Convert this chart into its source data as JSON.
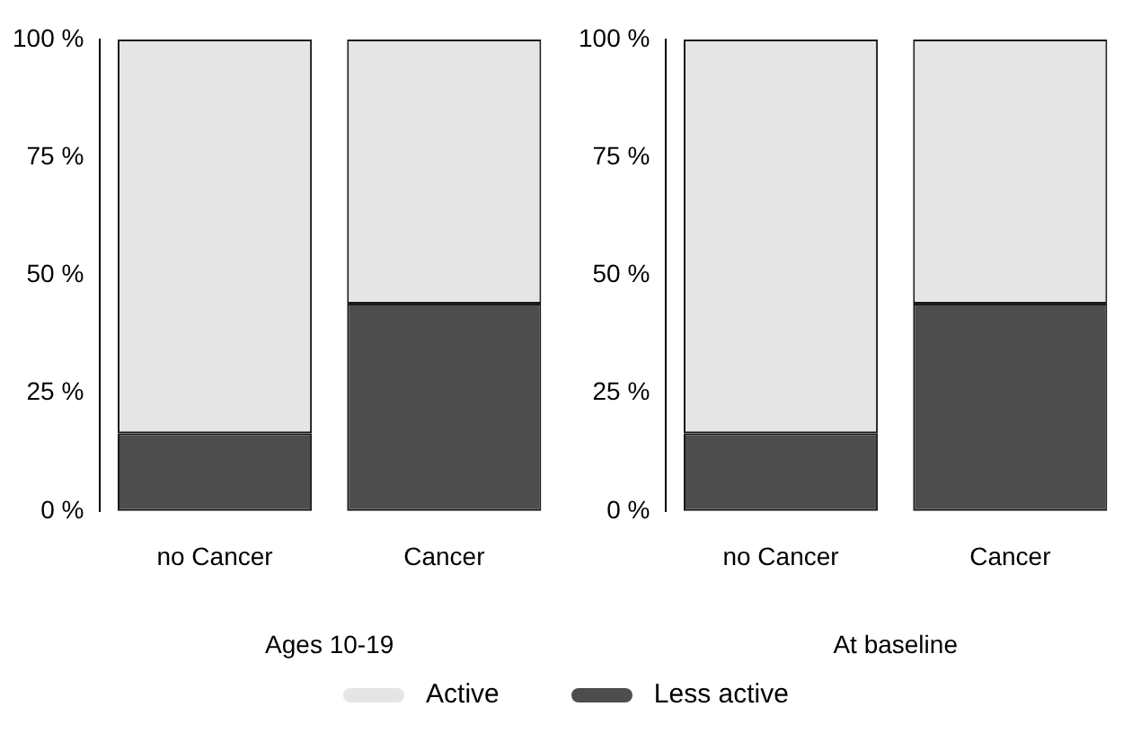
{
  "chart_data": [
    {
      "type": "bar",
      "stacked": true,
      "categories": [
        "no Cancer",
        "Cancer"
      ],
      "xlabel": "Ages 10-19",
      "series": [
        {
          "name": "Less active",
          "color": "#4d4d4d",
          "values": [
            16.5,
            44
          ]
        },
        {
          "name": "Active",
          "color": "#e5e5e5",
          "values": [
            83.5,
            56
          ]
        }
      ],
      "ylim": [
        0,
        100
      ],
      "yticks": [
        {
          "value": 0,
          "label": "0 %"
        },
        {
          "value": 25,
          "label": "25 %"
        },
        {
          "value": 50,
          "label": "50 %"
        },
        {
          "value": 75,
          "label": "75 %"
        },
        {
          "value": 100,
          "label": "100 %"
        }
      ],
      "grid": false,
      "legend": "bottom"
    },
    {
      "type": "bar",
      "stacked": true,
      "categories": [
        "no Cancer",
        "Cancer"
      ],
      "xlabel": "At baseline",
      "series": [
        {
          "name": "Less active",
          "color": "#4d4d4d",
          "values": [
            16.5,
            44
          ]
        },
        {
          "name": "Active",
          "color": "#e5e5e5",
          "values": [
            83.5,
            56
          ]
        }
      ],
      "ylim": [
        0,
        100
      ],
      "yticks": [
        {
          "value": 0,
          "label": "0 %"
        },
        {
          "value": 25,
          "label": "25 %"
        },
        {
          "value": 50,
          "label": "50 %"
        },
        {
          "value": 75,
          "label": "75 %"
        },
        {
          "value": 100,
          "label": "100 %"
        }
      ],
      "grid": false,
      "legend": "bottom"
    }
  ]
}
